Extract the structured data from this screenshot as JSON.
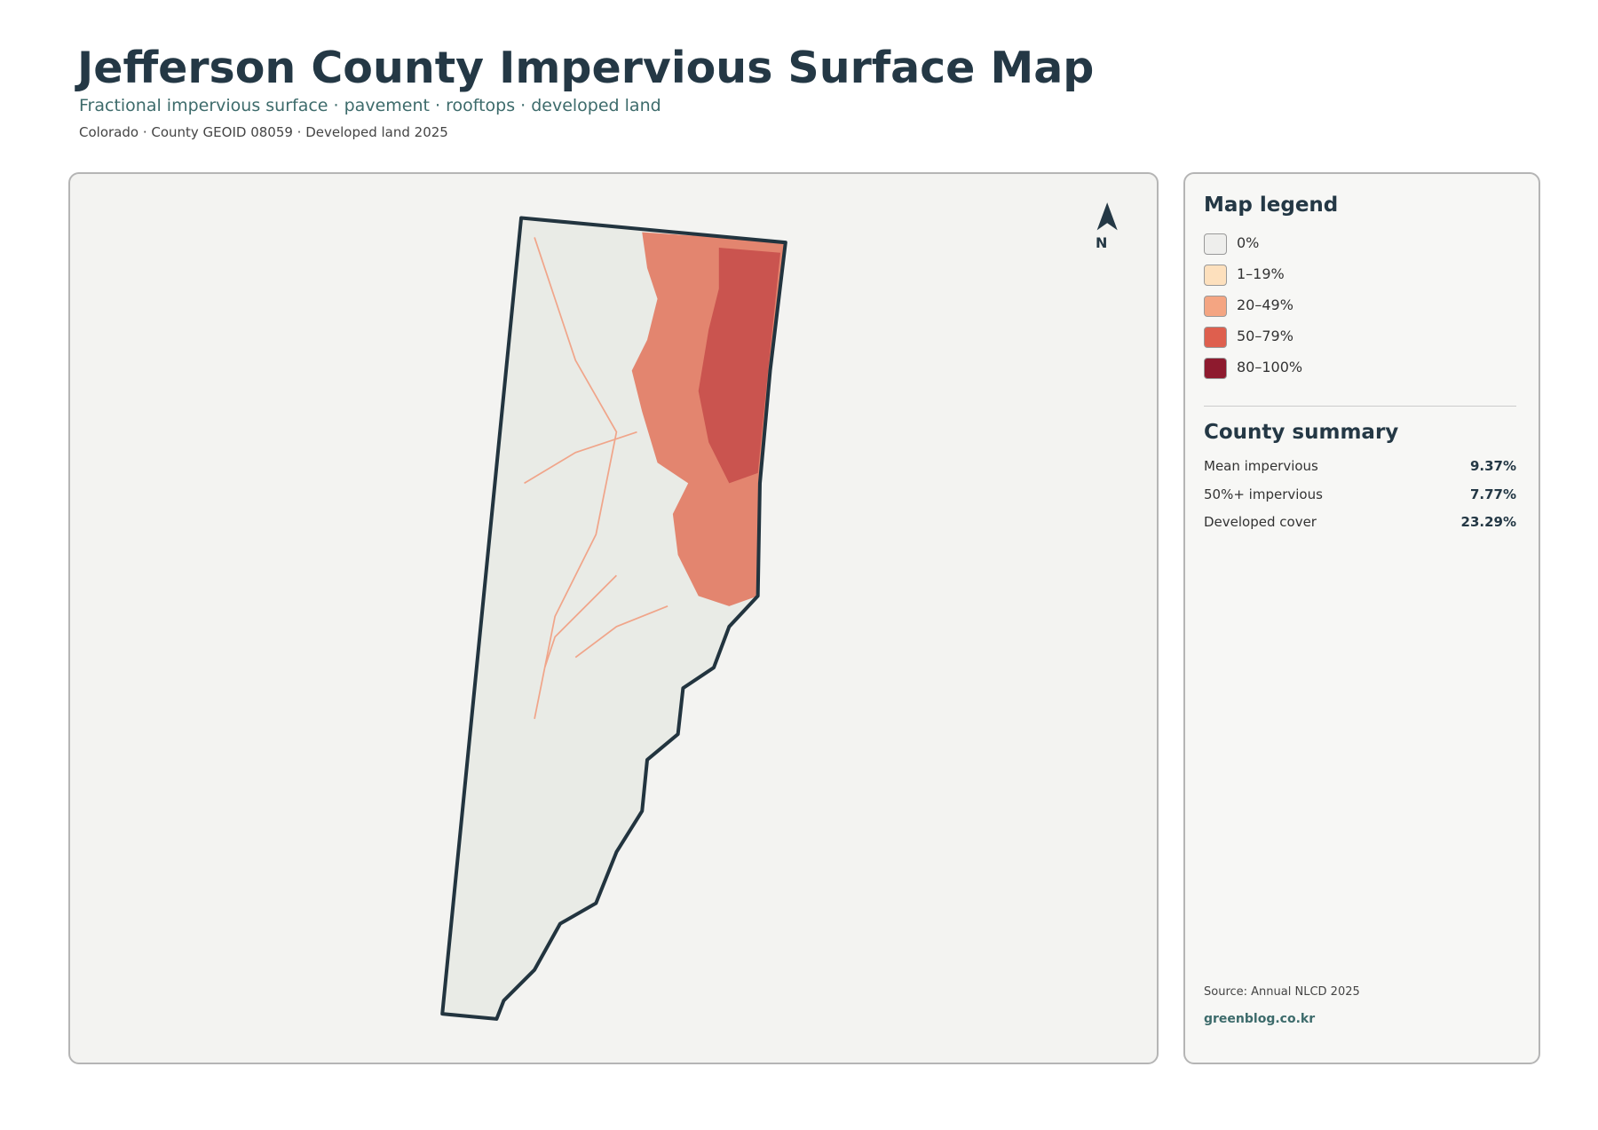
{
  "header": {
    "title": "Jefferson County Impervious Surface Map",
    "subtitle": "Fractional impervious surface · pavement · rooftops · developed land",
    "meta": "Colorado · County GEOID 08059 · Developed land 2025"
  },
  "map": {
    "north_label": "N"
  },
  "legend": {
    "title": "Map legend",
    "items": [
      {
        "label": "0%",
        "color": "#eeeeec"
      },
      {
        "label": "1–19%",
        "color": "#fde0bd"
      },
      {
        "label": "20–49%",
        "color": "#f4a582"
      },
      {
        "label": "50–79%",
        "color": "#de5f4e"
      },
      {
        "label": "80–100%",
        "color": "#8e1a2e"
      }
    ]
  },
  "summary": {
    "title": "County summary",
    "rows": [
      {
        "label": "Mean impervious",
        "value": "9.37%"
      },
      {
        "label": "50%+ impervious",
        "value": "7.77%"
      },
      {
        "label": "Developed cover",
        "value": "23.29%"
      }
    ]
  },
  "footer": {
    "source": "Source: Annual NLCD 2025",
    "site": "greenblog.co.kr"
  }
}
